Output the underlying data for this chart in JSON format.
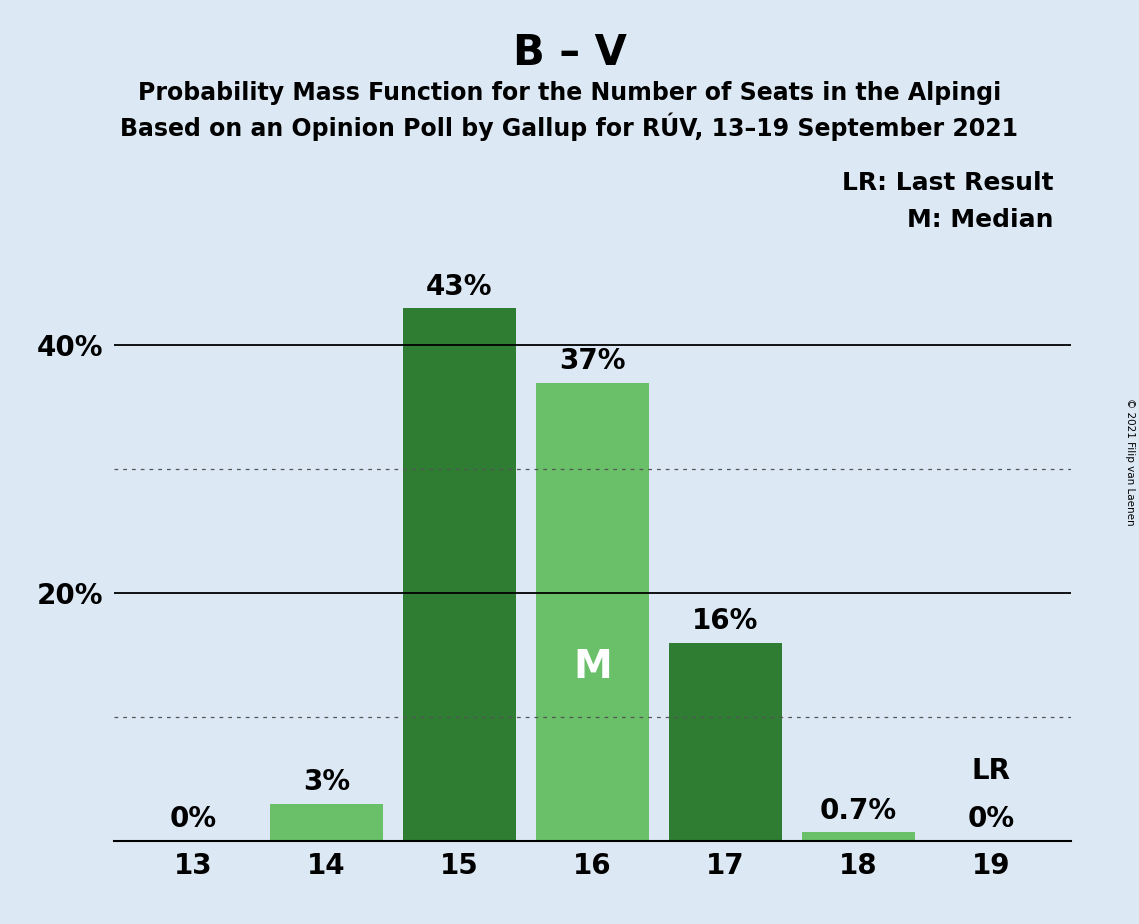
{
  "title": "B – V",
  "subtitle1": "Probability Mass Function for the Number of Seats in the Alpingi",
  "subtitle2": "Based on an Opinion Poll by Gallup for RÚV, 13–19 September 2021",
  "copyright": "© 2021 Filip van Laenen",
  "seats": [
    13,
    14,
    15,
    16,
    17,
    18,
    19
  ],
  "values": [
    0.0,
    3.0,
    43.0,
    37.0,
    16.0,
    0.7,
    0.0
  ],
  "bar_colors": [
    "#6abf69",
    "#6abf69",
    "#2e7d32",
    "#6abf69",
    "#2e7d32",
    "#6abf69",
    "#6abf69"
  ],
  "bar_labels": [
    "0%",
    "3%",
    "43%",
    "37%",
    "16%",
    "0.7%",
    "0%"
  ],
  "median_seat": 16,
  "last_result_seat": 19,
  "median_label": "M",
  "median_label_color": "#ffffff",
  "legend_lr": "LR: Last Result",
  "legend_m": "M: Median",
  "background_color": "#dce9f5",
  "plot_background_color": "#dce9f5",
  "ylim": [
    0,
    47
  ],
  "solid_yticks": [
    20,
    40
  ],
  "dotted_yticks": [
    10,
    30
  ],
  "title_fontsize": 30,
  "subtitle_fontsize": 17,
  "tick_fontsize": 20,
  "legend_fontsize": 18,
  "bar_label_fontsize": 20,
  "median_label_fontsize": 28
}
